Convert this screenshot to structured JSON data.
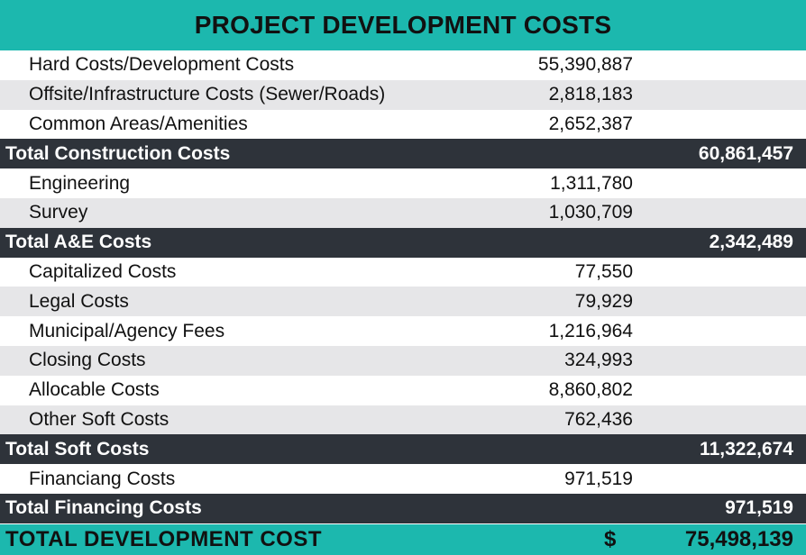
{
  "title": "PROJECT DEVELOPMENT COSTS",
  "colors": {
    "accent": "#1cb8ae",
    "subtotal_bg": "#2e333a",
    "row_shade": "#e6e6e8"
  },
  "sections": [
    {
      "items": [
        {
          "label": "Hard Costs/Development Costs",
          "amount": "55,390,887"
        },
        {
          "label": "Offsite/Infrastructure Costs (Sewer/Roads)",
          "amount": "2,818,183"
        },
        {
          "label": "Common Areas/Amenities",
          "amount": "2,652,387"
        }
      ],
      "total_label": "Total Construction Costs",
      "total": "60,861,457"
    },
    {
      "items": [
        {
          "label": "Engineering",
          "amount": "1,311,780"
        },
        {
          "label": "Survey",
          "amount": "1,030,709"
        }
      ],
      "total_label": "Total A&E Costs",
      "total": "2,342,489"
    },
    {
      "items": [
        {
          "label": "Capitalized Costs",
          "amount": "77,550"
        },
        {
          "label": "Legal Costs",
          "amount": "79,929"
        },
        {
          "label": "Municipal/Agency Fees",
          "amount": "1,216,964"
        },
        {
          "label": "Closing Costs",
          "amount": "324,993"
        },
        {
          "label": "Allocable Costs",
          "amount": "8,860,802"
        },
        {
          "label": "Other Soft Costs",
          "amount": "762,436"
        }
      ],
      "total_label": "Total Soft Costs",
      "total": "11,322,674"
    },
    {
      "items": [
        {
          "label": "Financiang Costs",
          "amount": "971,519"
        }
      ],
      "total_label": "Total Financing Costs",
      "total": "971,519"
    }
  ],
  "grand_total": {
    "label": "TOTAL DEVELOPMENT COST",
    "currency": "$",
    "amount": "75,498,139"
  }
}
